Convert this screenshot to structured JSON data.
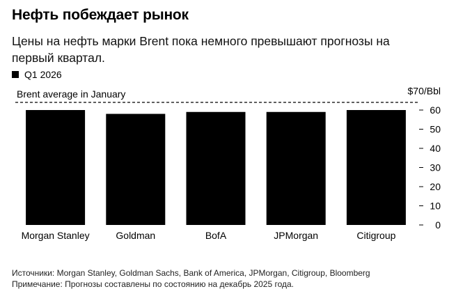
{
  "header": {
    "title": "Нефть побеждает рынок",
    "subtitle": "Цены на нефть марки Brent пока немного превышают прогнозы на первый квартал."
  },
  "legend": {
    "label": "Q1 2026",
    "color": "#000000"
  },
  "chart_data": {
    "type": "bar",
    "categories": [
      "Morgan Stanley",
      "Goldman",
      "BofA",
      "JPMorgan",
      "Citigroup"
    ],
    "series": [
      {
        "name": "Q1 2026",
        "values": [
          60,
          58,
          59,
          59,
          60
        ],
        "color": "#000000"
      }
    ],
    "yticks": [
      0,
      10,
      20,
      30,
      40,
      50,
      60
    ],
    "ylim": [
      0,
      70
    ],
    "top_tick_label": "$70/Bbl",
    "reference_line": {
      "label": "Brent average in January",
      "value": 64,
      "style": "dashed"
    },
    "grid": false,
    "axis_side": "right",
    "legend_position": "top-left"
  },
  "footer": {
    "sources": "Источники: Morgan Stanley, Goldman Sachs, Bank of America, JPMorgan, Citigroup, Bloomberg",
    "note": "Примечание: Прогнозы составлены по состоянию на декабрь 2025 года."
  }
}
